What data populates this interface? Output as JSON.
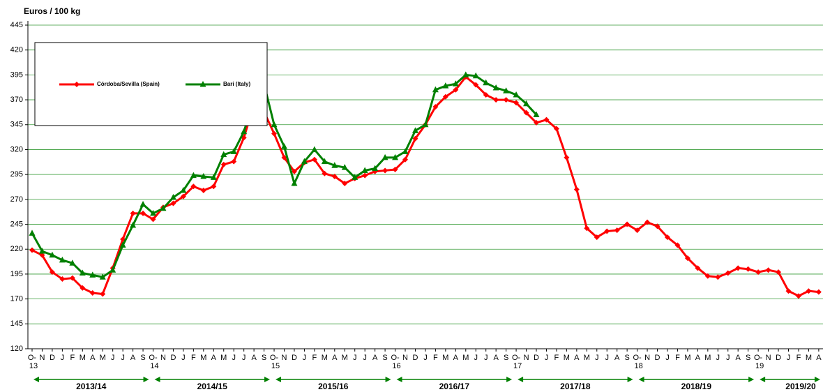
{
  "chart_data": {
    "type": "line",
    "y_label": "Euros / 100 kg",
    "categories": [
      "O-",
      "N",
      "D",
      "J",
      "F",
      "M",
      "A",
      "M",
      "J",
      "J",
      "A",
      "S",
      "O-",
      "N",
      "D",
      "J",
      "F",
      "M",
      "A",
      "M",
      "J",
      "J",
      "A",
      "S",
      "O-",
      "N",
      "D",
      "J",
      "F",
      "M",
      "A",
      "M",
      "J",
      "J",
      "A",
      "S",
      "O-",
      "N",
      "D",
      "J",
      "F",
      "M",
      "A",
      "M",
      "J",
      "J",
      "A",
      "S",
      "O-",
      "N",
      "D",
      "J",
      "F",
      "M",
      "A",
      "M",
      "J",
      "J",
      "A",
      "S",
      "O-",
      "N",
      "D",
      "J",
      "F",
      "M",
      "A",
      "M",
      "J",
      "J",
      "A",
      "S",
      "O-",
      "N",
      "D",
      "J",
      "F",
      "M",
      "A"
    ],
    "year_labels": [
      "13",
      "14",
      "15",
      "16",
      "17",
      "18",
      "19"
    ],
    "seasons": [
      "2013/14",
      "2014/15",
      "2015/16",
      "2016/17",
      "2017/18",
      "2018/19",
      "2019/20"
    ],
    "series": [
      {
        "name": "Córdoba/Sevilla (Spain)",
        "color": "#ff0000",
        "marker": "diamond",
        "values": [
          219,
          214,
          197,
          190,
          191,
          181,
          176,
          175,
          201,
          230,
          256,
          256,
          250,
          262,
          266,
          273,
          283,
          279,
          283,
          305,
          308,
          332,
          365,
          358,
          336,
          312,
          298,
          307,
          310,
          296,
          293,
          286,
          291,
          294,
          298,
          299,
          300,
          310,
          331,
          345,
          363,
          373,
          380,
          393,
          385,
          375,
          370,
          370,
          367,
          357,
          347,
          350,
          341,
          312,
          280,
          241,
          232,
          238,
          239,
          245,
          239,
          247,
          243,
          232,
          224,
          211,
          201,
          193,
          192,
          196,
          201,
          200,
          197,
          199,
          197,
          178,
          173,
          178,
          177
        ]
      },
      {
        "name": "Bari (Italy)",
        "color": "#008000",
        "marker": "triangle",
        "values": [
          236,
          218,
          214,
          209,
          206,
          196,
          194,
          192,
          199,
          224,
          244,
          265,
          256,
          261,
          272,
          279,
          294,
          293,
          292,
          315,
          318,
          338,
          370,
          386,
          345,
          323,
          286,
          308,
          320,
          308,
          304,
          302,
          292,
          299,
          301,
          312,
          312,
          318,
          339,
          345,
          380,
          384,
          386,
          395,
          394,
          387,
          382,
          379,
          375,
          366,
          355,
          null,
          null,
          null,
          null,
          null,
          null,
          null,
          null,
          null,
          null,
          null,
          null,
          null,
          null,
          null,
          null,
          null,
          null,
          null,
          null,
          null,
          null,
          null,
          null,
          null,
          null,
          null,
          null
        ]
      }
    ],
    "ylim": [
      120,
      445
    ],
    "yticks": [
      120,
      145,
      170,
      195,
      220,
      245,
      270,
      295,
      320,
      345,
      370,
      395,
      420,
      445
    ],
    "grid": true,
    "grid_color": "#339933"
  }
}
